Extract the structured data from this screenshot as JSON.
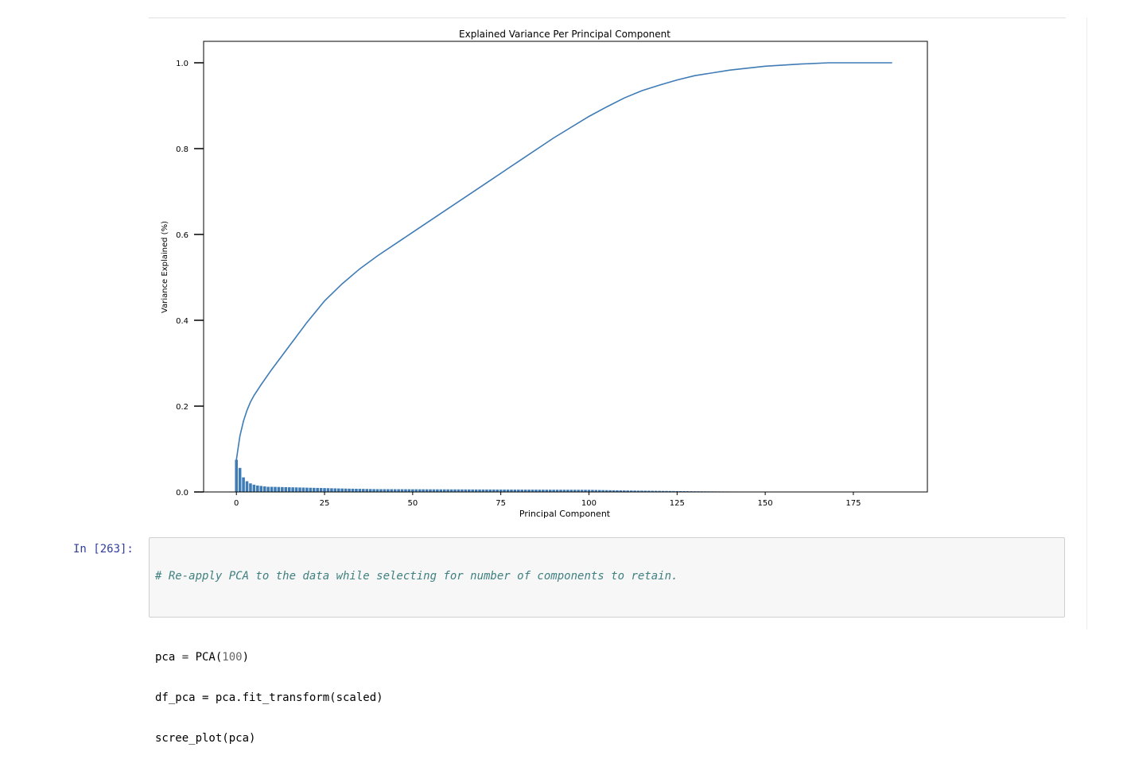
{
  "chart_data": {
    "type": "bar",
    "title": "Explained Variance Per Principal Component",
    "xlabel": "Principal Component",
    "ylabel": "Variance Explained (%)",
    "xlim": [
      -9.3,
      196
    ],
    "ylim": [
      0,
      1.05
    ],
    "xticks": [
      0,
      25,
      50,
      75,
      100,
      125,
      150,
      175
    ],
    "yticks": [
      0.0,
      0.2,
      0.4,
      0.6,
      0.8,
      1.0
    ],
    "ytick_labels": [
      "0.0",
      "0.2",
      "0.4",
      "0.6",
      "0.8",
      "1.0"
    ],
    "bar_color": "#3f7bb5",
    "line_color": "#3f7bb5",
    "n_components": 187,
    "bars": {
      "first_values": [
        0.075,
        0.056,
        0.034,
        0.025,
        0.02,
        0.017,
        0.015,
        0.014,
        0.013,
        0.012,
        0.012
      ],
      "anchors": [
        [
          10,
          0.012
        ],
        [
          20,
          0.01
        ],
        [
          30,
          0.008
        ],
        [
          40,
          0.0065
        ],
        [
          60,
          0.006
        ],
        [
          80,
          0.0055
        ],
        [
          100,
          0.005
        ],
        [
          110,
          0.0035
        ],
        [
          120,
          0.0025
        ],
        [
          130,
          0.0015
        ],
        [
          140,
          0.001
        ],
        [
          150,
          0.0007
        ],
        [
          158,
          0.0004
        ],
        [
          159,
          0
        ]
      ]
    },
    "cumulative_line": {
      "x": [
        0,
        1,
        2,
        3,
        4,
        5,
        7,
        10,
        15,
        20,
        25,
        30,
        35,
        40,
        50,
        60,
        70,
        80,
        90,
        100,
        105,
        110,
        115,
        120,
        125,
        130,
        140,
        150,
        160,
        168,
        186
      ],
      "y": [
        0.075,
        0.131,
        0.165,
        0.19,
        0.21,
        0.225,
        0.25,
        0.285,
        0.34,
        0.395,
        0.445,
        0.485,
        0.52,
        0.55,
        0.605,
        0.66,
        0.715,
        0.77,
        0.825,
        0.875,
        0.897,
        0.918,
        0.935,
        0.948,
        0.96,
        0.97,
        0.983,
        0.992,
        0.997,
        1.0,
        1.0
      ]
    }
  },
  "notebook": {
    "prompt": "In [263]:",
    "code": {
      "comment": "# Re-apply PCA to the data while selecting for number of components to retain.",
      "line2_name": "pca ",
      "line2_op": "= ",
      "line2_call": "PCA(",
      "line2_num": "100",
      "line2_close": ")",
      "line3": "df_pca = pca.fit_transform(scaled)",
      "line4": "scree_plot(pca)"
    }
  }
}
